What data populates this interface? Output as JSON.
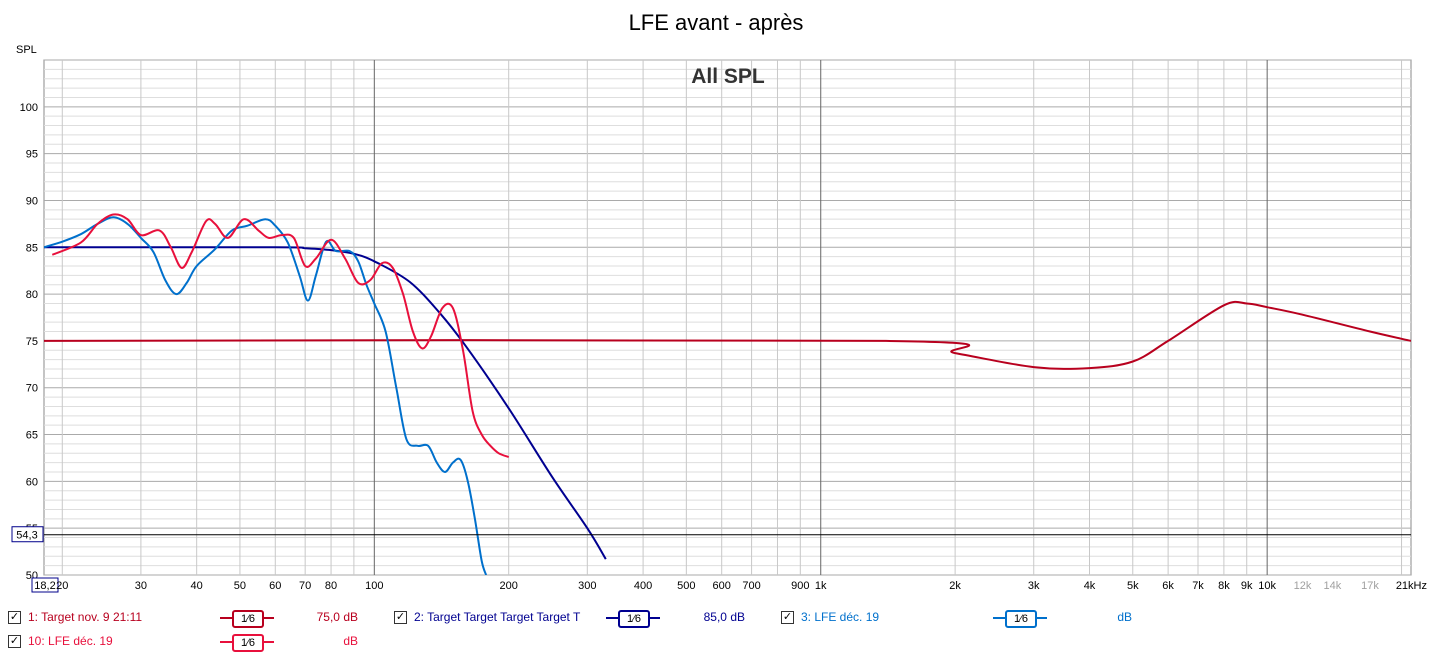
{
  "chart_data": {
    "type": "line",
    "title": "LFE avant - après",
    "subtitle": "All SPL",
    "ylabel": "SPL",
    "xlabel": "",
    "x_scale": "log",
    "xlim": [
      18.2,
      21000
    ],
    "ylim": [
      50,
      105
    ],
    "y_ticks": [
      "100",
      "95",
      "90",
      "85",
      "80",
      "75",
      "70",
      "65",
      "60",
      "55",
      "50"
    ],
    "y_tick_values": [
      100,
      95,
      90,
      85,
      80,
      75,
      70,
      65,
      60,
      55,
      50
    ],
    "x_ticks": [
      {
        "v": 18.2,
        "label": "18,2"
      },
      {
        "v": 20,
        "label": "20"
      },
      {
        "v": 30,
        "label": "30"
      },
      {
        "v": 40,
        "label": "40"
      },
      {
        "v": 50,
        "label": "50"
      },
      {
        "v": 60,
        "label": "60"
      },
      {
        "v": 70,
        "label": "70"
      },
      {
        "v": 80,
        "label": "80"
      },
      {
        "v": 100,
        "label": "100"
      },
      {
        "v": 200,
        "label": "200"
      },
      {
        "v": 300,
        "label": "300"
      },
      {
        "v": 400,
        "label": "400"
      },
      {
        "v": 500,
        "label": "500"
      },
      {
        "v": 600,
        "label": "600"
      },
      {
        "v": 700,
        "label": "700"
      },
      {
        "v": 900,
        "label": "900"
      },
      {
        "v": 1000,
        "label": "1k"
      },
      {
        "v": 2000,
        "label": "2k"
      },
      {
        "v": 3000,
        "label": "3k"
      },
      {
        "v": 4000,
        "label": "4k"
      },
      {
        "v": 5000,
        "label": "5k"
      },
      {
        "v": 6000,
        "label": "6k"
      },
      {
        "v": 7000,
        "label": "7k"
      },
      {
        "v": 8000,
        "label": "8k"
      },
      {
        "v": 9000,
        "label": "9k"
      },
      {
        "v": 10000,
        "label": "10k"
      },
      {
        "v": 12000,
        "label": "12k"
      },
      {
        "v": 14000,
        "label": "14k"
      },
      {
        "v": 17000,
        "label": "17k"
      },
      {
        "v": 21000,
        "label": "21kHz"
      }
    ],
    "cursor_y": {
      "value": 54.3,
      "label": "54,3"
    },
    "grid": true,
    "legend_position": "bottom",
    "series": [
      {
        "name": "1: Target nov. 9 21:11",
        "color": "#b8001e",
        "points": [
          [
            18.2,
            75
          ],
          [
            1400,
            75
          ],
          [
            2000,
            73.7
          ],
          [
            3000,
            72.2
          ],
          [
            4000,
            72.1
          ],
          [
            5000,
            72.8
          ],
          [
            6000,
            75
          ],
          [
            8000,
            78.8
          ],
          [
            9000,
            79
          ],
          [
            10000,
            78.6
          ],
          [
            12000,
            77.8
          ],
          [
            17000,
            76
          ],
          [
            21000,
            75
          ]
        ]
      },
      {
        "name": "2: Target Target Target Target T",
        "color": "#000090",
        "points": [
          [
            18.2,
            85
          ],
          [
            60,
            85
          ],
          [
            70,
            84.9
          ],
          [
            80,
            84.7
          ],
          [
            90,
            84.3
          ],
          [
            100,
            83.5
          ],
          [
            120,
            81.3
          ],
          [
            140,
            78
          ],
          [
            160,
            74.5
          ],
          [
            200,
            67.8
          ],
          [
            250,
            60.5
          ],
          [
            300,
            55
          ],
          [
            330,
            51.7
          ]
        ]
      },
      {
        "name": "3: LFE déc. 19",
        "color": "#0070cc",
        "points": [
          [
            18.2,
            85
          ],
          [
            20,
            85.6
          ],
          [
            22,
            86.4
          ],
          [
            24,
            87.5
          ],
          [
            26,
            88.2
          ],
          [
            28,
            87.5
          ],
          [
            30,
            86
          ],
          [
            32,
            84.5
          ],
          [
            34,
            81.5
          ],
          [
            36,
            80
          ],
          [
            38,
            81.2
          ],
          [
            40,
            83
          ],
          [
            44,
            84.8
          ],
          [
            48,
            86.8
          ],
          [
            52,
            87.3
          ],
          [
            57,
            88
          ],
          [
            60,
            87.3
          ],
          [
            64,
            85.5
          ],
          [
            68,
            82
          ],
          [
            71,
            79.3
          ],
          [
            74,
            82
          ],
          [
            78,
            85.6
          ],
          [
            82,
            84.6
          ],
          [
            88,
            84.6
          ],
          [
            92,
            83.5
          ],
          [
            96,
            81
          ],
          [
            100,
            79
          ],
          [
            106,
            76
          ],
          [
            112,
            70
          ],
          [
            118,
            64.5
          ],
          [
            125,
            63.8
          ],
          [
            132,
            63.8
          ],
          [
            138,
            62
          ],
          [
            144,
            61
          ],
          [
            150,
            62
          ],
          [
            156,
            62.3
          ],
          [
            162,
            60
          ],
          [
            168,
            56
          ],
          [
            174,
            51.5
          ],
          [
            178,
            50
          ]
        ]
      },
      {
        "name": "10: LFE déc. 19",
        "color": "#e8103c",
        "points": [
          [
            19,
            84.2
          ],
          [
            22,
            85.5
          ],
          [
            24,
            87.5
          ],
          [
            26,
            88.5
          ],
          [
            28,
            88
          ],
          [
            30,
            86.3
          ],
          [
            33,
            86.8
          ],
          [
            35,
            85
          ],
          [
            37,
            82.8
          ],
          [
            39,
            84.5
          ],
          [
            42,
            87.8
          ],
          [
            44,
            87.5
          ],
          [
            47,
            86
          ],
          [
            51,
            88
          ],
          [
            55,
            86.8
          ],
          [
            58,
            86
          ],
          [
            62,
            86.3
          ],
          [
            66,
            86
          ],
          [
            70,
            83
          ],
          [
            74,
            83.8
          ],
          [
            80,
            85.8
          ],
          [
            86,
            83.8
          ],
          [
            92,
            81.2
          ],
          [
            98,
            81.5
          ],
          [
            104,
            83.3
          ],
          [
            110,
            82.8
          ],
          [
            116,
            80
          ],
          [
            122,
            76
          ],
          [
            128,
            74.2
          ],
          [
            134,
            75.5
          ],
          [
            142,
            78.5
          ],
          [
            150,
            78.5
          ],
          [
            158,
            74
          ],
          [
            166,
            67.5
          ],
          [
            174,
            65
          ],
          [
            182,
            63.8
          ],
          [
            190,
            63
          ],
          [
            200,
            62.6
          ]
        ]
      }
    ]
  },
  "legend": [
    {
      "id": "1",
      "label": "1: Target nov. 9 21:11",
      "smoothing": "1⁄6",
      "value": "75,0 dB",
      "color": "#b8001e",
      "checked": "✓"
    },
    {
      "id": "2",
      "label": "2: Target Target Target Target T",
      "smoothing": "1⁄6",
      "value": "85,0 dB",
      "color": "#000090",
      "checked": "✓"
    },
    {
      "id": "3",
      "label": "3: LFE déc. 19",
      "smoothing": "1⁄6",
      "value": "dB",
      "color": "#0070cc",
      "checked": "✓"
    },
    {
      "id": "10",
      "label": "10: LFE déc. 19",
      "smoothing": "1⁄6",
      "value": "dB",
      "color": "#e8103c",
      "checked": "✓"
    }
  ]
}
